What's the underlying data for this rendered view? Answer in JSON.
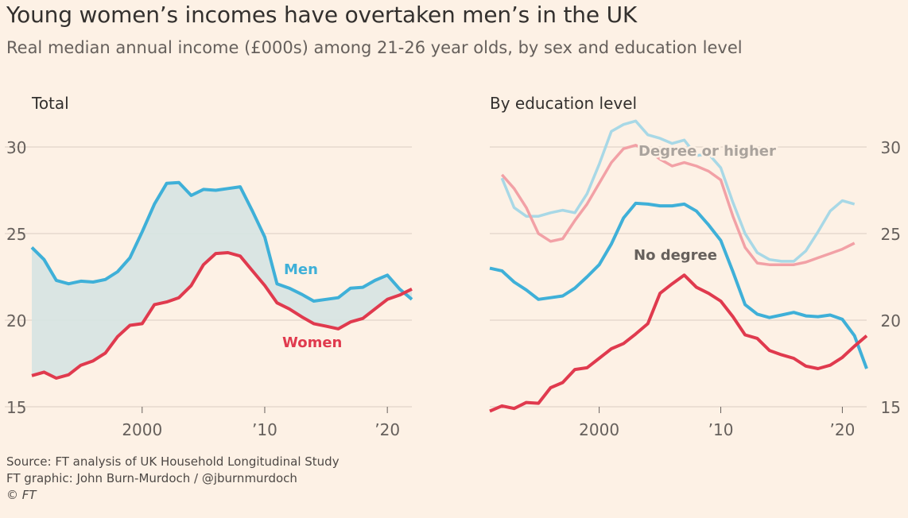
{
  "title": "Young women’s incomes have overtaken men’s in the UK",
  "subtitle": "Real median annual income (£000s) among 21-26 year olds, by sex and education level",
  "footer": {
    "source": "Source: FT analysis of UK Household Longitudinal Study",
    "credit": "FT graphic: John Burn-Murdoch / @jburnmurdoch",
    "copyright": "© FT"
  },
  "colors": {
    "men": "#3fb0d8",
    "women": "#e03a4e",
    "men_light": "#a8d8e6",
    "women_light": "#f2a1a6",
    "fill": "#d6e3e2",
    "grid": "#e6d9ce",
    "text": "#33302e"
  },
  "chart_data": [
    {
      "type": "line",
      "title": "Total",
      "ylim": [
        15,
        30
      ],
      "xlim": [
        1991,
        2022
      ],
      "yticks": [
        15,
        20,
        25,
        30
      ],
      "ytick_labels": [
        "15",
        "20",
        "25",
        "30"
      ],
      "xticks": [
        2000,
        2010,
        2020
      ],
      "xtick_labels": [
        "2000",
        "’10",
        "’20"
      ],
      "series": [
        {
          "name": "Men",
          "key": "men",
          "x": [
            1991,
            1992,
            1993,
            1994,
            1995,
            1996,
            1997,
            1998,
            1999,
            2000,
            2001,
            2002,
            2003,
            2004,
            2005,
            2006,
            2007,
            2008,
            2009,
            2010,
            2011,
            2012,
            2013,
            2014,
            2015,
            2016,
            2017,
            2018,
            2019,
            2020,
            2021,
            2022
          ],
          "values": [
            24.2,
            23.5,
            22.3,
            22.1,
            22.25,
            22.2,
            22.35,
            22.8,
            23.6,
            25.1,
            26.7,
            27.9,
            27.95,
            27.2,
            27.55,
            27.5,
            27.6,
            27.7,
            26.3,
            24.8,
            22.1,
            21.85,
            21.5,
            21.1,
            21.2,
            21.3,
            21.85,
            21.9,
            22.3,
            22.6,
            21.8,
            21.2
          ]
        },
        {
          "name": "Women",
          "key": "women",
          "x": [
            1991,
            1992,
            1993,
            1994,
            1995,
            1996,
            1997,
            1998,
            1999,
            2000,
            2001,
            2002,
            2003,
            2004,
            2005,
            2006,
            2007,
            2008,
            2009,
            2010,
            2011,
            2012,
            2013,
            2014,
            2015,
            2016,
            2017,
            2018,
            2019,
            2020,
            2021,
            2022
          ],
          "values": [
            16.8,
            17.0,
            16.65,
            16.85,
            17.4,
            17.65,
            18.1,
            19.05,
            19.7,
            19.8,
            20.9,
            21.05,
            21.3,
            22.0,
            23.2,
            23.85,
            23.9,
            23.7,
            22.85,
            22.0,
            21.0,
            20.65,
            20.2,
            19.8,
            19.65,
            19.5,
            19.9,
            20.1,
            20.65,
            21.2,
            21.45,
            21.8
          ]
        }
      ],
      "shaded_gap": true,
      "annotations": [
        {
          "text": "Men",
          "series": "men"
        },
        {
          "text": "Women",
          "series": "women"
        }
      ]
    },
    {
      "type": "line",
      "title": "By education level",
      "ylim": [
        15,
        30
      ],
      "xlim": [
        1991,
        2022
      ],
      "yticks": [
        15,
        20,
        25,
        30
      ],
      "ytick_labels": [
        "15",
        "20",
        "25",
        "30"
      ],
      "xticks": [
        2000,
        2010,
        2020
      ],
      "xtick_labels": [
        "2000",
        "’10",
        "’20"
      ],
      "series": [
        {
          "name": "Men, degree or higher",
          "key": "men_light",
          "x": [
            1992,
            1993,
            1994,
            1995,
            1996,
            1997,
            1998,
            1999,
            2000,
            2001,
            2002,
            2003,
            2004,
            2005,
            2006,
            2007,
            2008,
            2009,
            2010,
            2011,
            2012,
            2013,
            2014,
            2015,
            2016,
            2017,
            2018,
            2019,
            2020,
            2021
          ],
          "values": [
            28.2,
            26.5,
            26.0,
            26.0,
            26.2,
            26.35,
            26.2,
            27.3,
            29.0,
            30.9,
            31.3,
            31.5,
            30.7,
            30.5,
            30.2,
            30.4,
            29.5,
            29.6,
            28.8,
            26.8,
            25.0,
            23.9,
            23.5,
            23.4,
            23.4,
            24.0,
            25.1,
            26.3,
            26.9,
            26.7
          ]
        },
        {
          "name": "Women, degree or higher",
          "key": "women_light",
          "x": [
            1992,
            1993,
            1994,
            1995,
            1996,
            1997,
            1998,
            1999,
            2000,
            2001,
            2002,
            2003,
            2004,
            2005,
            2006,
            2007,
            2008,
            2009,
            2010,
            2011,
            2012,
            2013,
            2014,
            2015,
            2016,
            2017,
            2018,
            2019,
            2020,
            2021
          ],
          "values": [
            28.4,
            27.6,
            26.5,
            25.0,
            24.55,
            24.7,
            25.75,
            26.7,
            27.9,
            29.1,
            29.9,
            30.1,
            29.8,
            29.3,
            28.9,
            29.1,
            28.9,
            28.6,
            28.1,
            26.0,
            24.2,
            23.3,
            23.2,
            23.2,
            23.2,
            23.35,
            23.6,
            23.85,
            24.1,
            24.45
          ]
        },
        {
          "name": "Men, no degree",
          "key": "men",
          "x": [
            1991,
            1992,
            1993,
            1994,
            1995,
            1996,
            1997,
            1998,
            1999,
            2000,
            2001,
            2002,
            2003,
            2004,
            2005,
            2006,
            2007,
            2008,
            2009,
            2010,
            2011,
            2012,
            2013,
            2014,
            2015,
            2016,
            2017,
            2018,
            2019,
            2020,
            2021,
            2022
          ],
          "values": [
            23.0,
            22.85,
            22.2,
            21.75,
            21.2,
            21.3,
            21.4,
            21.85,
            22.5,
            23.2,
            24.4,
            25.9,
            26.75,
            26.7,
            26.6,
            26.6,
            26.7,
            26.3,
            25.5,
            24.6,
            22.8,
            20.9,
            20.35,
            20.15,
            20.3,
            20.45,
            20.25,
            20.2,
            20.3,
            20.05,
            19.1,
            17.2
          ]
        },
        {
          "name": "Women, no degree",
          "key": "women",
          "x": [
            1991,
            1992,
            1993,
            1994,
            1995,
            1996,
            1997,
            1998,
            1999,
            2000,
            2001,
            2002,
            2003,
            2004,
            2005,
            2006,
            2007,
            2008,
            2009,
            2010,
            2011,
            2012,
            2013,
            2014,
            2015,
            2016,
            2017,
            2018,
            2019,
            2020,
            2021,
            2022
          ],
          "values": [
            14.75,
            15.05,
            14.9,
            15.25,
            15.2,
            16.1,
            16.4,
            17.15,
            17.25,
            17.8,
            18.35,
            18.65,
            19.2,
            19.8,
            21.55,
            22.1,
            22.6,
            21.9,
            21.55,
            21.1,
            20.2,
            19.15,
            18.95,
            18.25,
            18.0,
            17.8,
            17.35,
            17.2,
            17.4,
            17.85,
            18.5,
            19.1
          ]
        }
      ],
      "annotations": [
        {
          "text": "Degree or higher",
          "series": "men_light"
        },
        {
          "text": "No degree",
          "series": "men"
        }
      ]
    }
  ]
}
